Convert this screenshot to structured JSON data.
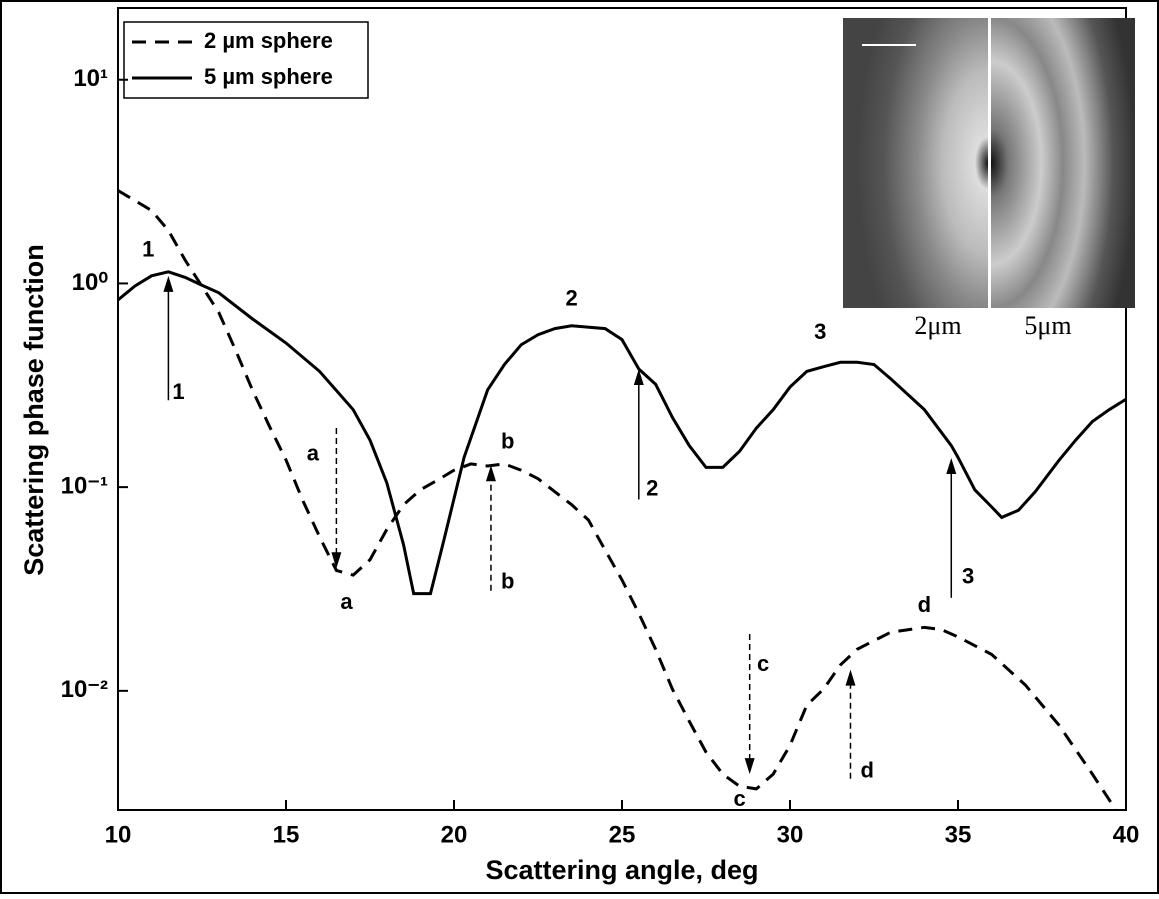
{
  "chart_data": {
    "type": "line",
    "xlabel": "Scattering angle, deg",
    "ylabel": "Scattering phase function",
    "xlim": [
      10,
      40
    ],
    "xticks": [
      10,
      15,
      20,
      25,
      30,
      35,
      40
    ],
    "ylim": [
      0.0026,
      22.5
    ],
    "ylog": true,
    "yticks": [
      {
        "value": 10,
        "label": "10¹"
      },
      {
        "value": 1,
        "label": "10⁰"
      },
      {
        "value": 0.1,
        "label": "10⁻¹"
      },
      {
        "value": 0.01,
        "label": "10⁻²"
      }
    ],
    "legend": "upper left",
    "series": [
      {
        "name": "2 µm sphere",
        "color": "#000000",
        "dash": true,
        "x": [
          10,
          11,
          11.5,
          12,
          13,
          13.5,
          14,
          14.5,
          15,
          15.5,
          16,
          16.5,
          17,
          17.5,
          18,
          18.5,
          19,
          19.5,
          20,
          20.5,
          21,
          21.5,
          22,
          22.5,
          23,
          23.5,
          24,
          24.5,
          25,
          25.5,
          26,
          26.5,
          27,
          27.5,
          28,
          28.5,
          29,
          29.5,
          30,
          30.5,
          31,
          31.5,
          32,
          33,
          34,
          34.5,
          35,
          36,
          37,
          38,
          39,
          39.7
        ],
        "values": [
          2.86,
          2.28,
          1.82,
          1.3,
          0.72,
          0.47,
          0.3,
          0.2,
          0.136,
          0.086,
          0.057,
          0.039,
          0.037,
          0.044,
          0.062,
          0.082,
          0.097,
          0.108,
          0.121,
          0.13,
          0.127,
          0.13,
          0.121,
          0.11,
          0.095,
          0.082,
          0.069,
          0.049,
          0.035,
          0.024,
          0.016,
          0.0102,
          0.0071,
          0.005,
          0.0039,
          0.0034,
          0.0033,
          0.0039,
          0.0054,
          0.0085,
          0.0102,
          0.0134,
          0.016,
          0.0194,
          0.0205,
          0.02,
          0.0184,
          0.0151,
          0.0107,
          0.0068,
          0.0039,
          0.0026
        ]
      },
      {
        "name": "5 µm sphere",
        "color": "#000000",
        "dash": false,
        "x": [
          10,
          10.5,
          11,
          11.5,
          12,
          12.5,
          13,
          14,
          15,
          16,
          17,
          17.5,
          18,
          18.5,
          18.8,
          19.3,
          19.7,
          20.3,
          21,
          21.5,
          22,
          22.5,
          23,
          23.5,
          24.5,
          25,
          25.5,
          26,
          26.5,
          27,
          27.5,
          28,
          28.5,
          29,
          29.5,
          30,
          30.5,
          31,
          31.5,
          32,
          32.5,
          33,
          34,
          34.8,
          35,
          35.5,
          36,
          36.3,
          36.8,
          37.3,
          38,
          38.5,
          39,
          39.5,
          40
        ],
        "values": [
          0.83,
          0.97,
          1.09,
          1.14,
          1.07,
          0.98,
          0.9,
          0.67,
          0.51,
          0.37,
          0.24,
          0.17,
          0.105,
          0.052,
          0.03,
          0.03,
          0.055,
          0.14,
          0.3,
          0.4,
          0.5,
          0.56,
          0.6,
          0.62,
          0.6,
          0.53,
          0.38,
          0.32,
          0.22,
          0.16,
          0.125,
          0.125,
          0.15,
          0.195,
          0.24,
          0.31,
          0.37,
          0.39,
          0.41,
          0.41,
          0.4,
          0.34,
          0.24,
          0.16,
          0.14,
          0.097,
          0.08,
          0.071,
          0.077,
          0.095,
          0.135,
          0.17,
          0.21,
          0.24,
          0.27
        ]
      }
    ],
    "arrows": [
      {
        "x": 11.5,
        "from": 0.267,
        "to": 1.09,
        "dash": false
      },
      {
        "x": 16.5,
        "from": 0.195,
        "to": 0.04,
        "dash": true
      },
      {
        "x": 21.1,
        "from": 0.031,
        "to": 0.128,
        "dash": true
      },
      {
        "x": 25.5,
        "from": 0.087,
        "to": 0.38,
        "dash": false
      },
      {
        "x": 28.8,
        "from": 0.019,
        "to": 0.0039,
        "dash": true
      },
      {
        "x": 31.8,
        "from": 0.0037,
        "to": 0.0127,
        "dash": true
      },
      {
        "x": 34.8,
        "from": 0.0286,
        "to": 0.139,
        "dash": false
      }
    ],
    "annotations": [
      {
        "text": "1",
        "x": 10.9,
        "y": 1.45
      },
      {
        "text": "1",
        "x": 11.8,
        "y": 0.29
      },
      {
        "text": "a",
        "x": 15.8,
        "y": 0.144
      },
      {
        "text": "a",
        "x": 16.8,
        "y": 0.027
      },
      {
        "text": "b",
        "x": 21.6,
        "y": 0.165
      },
      {
        "text": "b",
        "x": 21.6,
        "y": 0.034
      },
      {
        "text": "2",
        "x": 23.5,
        "y": 0.83
      },
      {
        "text": "2",
        "x": 25.9,
        "y": 0.097
      },
      {
        "text": "c",
        "x": 29.2,
        "y": 0.0134
      },
      {
        "text": "c",
        "x": 28.5,
        "y": 0.0029
      },
      {
        "text": "d",
        "x": 34.0,
        "y": 0.026
      },
      {
        "text": "d",
        "x": 32.3,
        "y": 0.004
      },
      {
        "text": "3",
        "x": 30.9,
        "y": 0.57
      },
      {
        "text": "3",
        "x": 35.3,
        "y": 0.036
      }
    ],
    "inset_labels": [
      "2μm",
      "5μm"
    ]
  }
}
